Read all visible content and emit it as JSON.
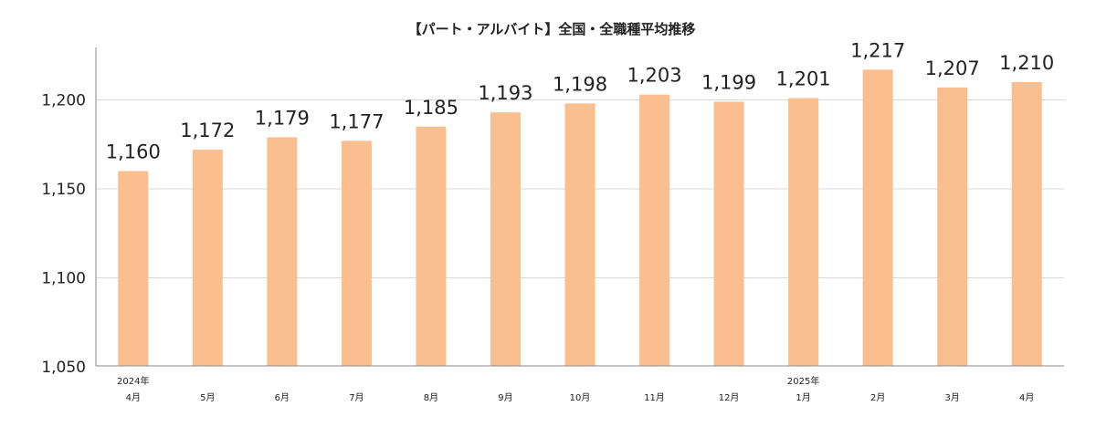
{
  "chart_data": {
    "type": "bar",
    "title": "【パート・アルバイト】全国・全職種平均推移",
    "xlabel": "",
    "ylabel": "",
    "categories": [
      {
        "year": "2024年",
        "month": "4月"
      },
      {
        "year": "",
        "month": "5月"
      },
      {
        "year": "",
        "month": "6月"
      },
      {
        "year": "",
        "month": "7月"
      },
      {
        "year": "",
        "month": "8月"
      },
      {
        "year": "",
        "month": "9月"
      },
      {
        "year": "",
        "month": "10月"
      },
      {
        "year": "",
        "month": "11月"
      },
      {
        "year": "",
        "month": "12月"
      },
      {
        "year": "2025年",
        "month": "1月"
      },
      {
        "year": "",
        "month": "2月"
      },
      {
        "year": "",
        "month": "3月"
      },
      {
        "year": "",
        "month": "4月"
      }
    ],
    "values": [
      1160,
      1172,
      1179,
      1177,
      1185,
      1193,
      1198,
      1203,
      1199,
      1201,
      1217,
      1207,
      1210
    ],
    "data_labels": [
      "1,160",
      "1,172",
      "1,179",
      "1,177",
      "1,185",
      "1,193",
      "1,198",
      "1,203",
      "1,199",
      "1,201",
      "1,217",
      "1,207",
      "1,210"
    ],
    "ylim": [
      1050,
      1230
    ],
    "yticks": [
      1050,
      1100,
      1150,
      1200
    ],
    "ytick_labels": [
      "1,050",
      "1,100",
      "1,150",
      "1,200"
    ],
    "grid": true,
    "legend": "none",
    "bar_color": "#fbbf8f"
  }
}
